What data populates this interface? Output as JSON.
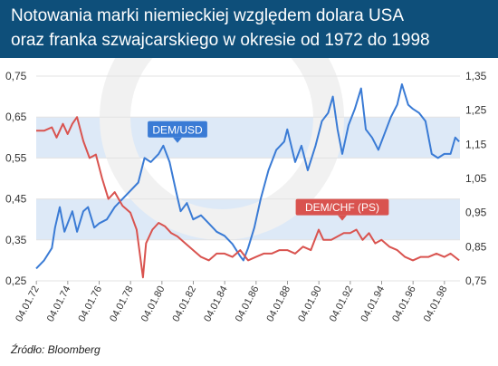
{
  "title_lines": [
    "Notowania marki niemieckiej względem dolara USA",
    "oraz franka szwajcarskiego w okresie od 1972 do 1998"
  ],
  "source": "Źródło: Bloomberg",
  "colors": {
    "header": "#0e4f7a",
    "usd": "#3a7bd5",
    "chf": "#d9534f",
    "band": "#dde9f7"
  },
  "chart_data": {
    "type": "line",
    "title": "Notowania marki niemieckiej względem dolara USA oraz franka szwajcarskiego w okresie od 1972 do 1998",
    "x_ticks": [
      "04.01.72",
      "04.01.74",
      "04.01.76",
      "04.01.78",
      "04.01.80",
      "04.01.82",
      "04.01.84",
      "04.01.86",
      "04.01.88",
      "04.01.90",
      "04.01.92",
      "04.01.94",
      "04.01.96",
      "04.01.98"
    ],
    "x_range": [
      "1972-01-04",
      "1998-12-31"
    ],
    "y_left": {
      "ticks": [
        "0,25",
        "0,35",
        "0,45",
        "0,55",
        "0,65",
        "0,75"
      ],
      "range": [
        0.25,
        0.75
      ]
    },
    "y_right": {
      "ticks": [
        "0,75",
        "0,85",
        "0,95",
        "1,05",
        "1,15",
        "1,25",
        "1,35"
      ],
      "range": [
        0.75,
        1.35
      ]
    },
    "bands_left_axis": [
      [
        0.35,
        0.45
      ],
      [
        0.55,
        0.65
      ]
    ],
    "series": [
      {
        "name": "DEM/USD",
        "axis": "left",
        "color": "#3a7bd5",
        "x": [
          1972.0,
          1972.5,
          1973.0,
          1973.2,
          1973.5,
          1973.8,
          1974.0,
          1974.3,
          1974.6,
          1975.0,
          1975.3,
          1975.7,
          1976.0,
          1976.5,
          1977.0,
          1977.5,
          1978.0,
          1978.5,
          1978.9,
          1979.3,
          1979.8,
          1980.1,
          1980.5,
          1980.9,
          1981.2,
          1981.6,
          1982.0,
          1982.5,
          1983.0,
          1983.5,
          1984.0,
          1984.5,
          1985.0,
          1985.2,
          1985.5,
          1985.9,
          1986.3,
          1986.8,
          1987.3,
          1987.8,
          1988.0,
          1988.5,
          1988.9,
          1989.3,
          1989.8,
          1990.2,
          1990.6,
          1990.9,
          1991.2,
          1991.5,
          1991.9,
          1992.3,
          1992.7,
          1993.0,
          1993.4,
          1993.8,
          1994.2,
          1994.6,
          1995.0,
          1995.3,
          1995.7,
          1996.0,
          1996.4,
          1996.8,
          1997.2,
          1997.6,
          1998.0,
          1998.4,
          1998.7,
          1998.95
        ],
        "y": [
          0.28,
          0.3,
          0.33,
          0.38,
          0.43,
          0.37,
          0.39,
          0.42,
          0.37,
          0.42,
          0.43,
          0.38,
          0.39,
          0.4,
          0.43,
          0.45,
          0.47,
          0.49,
          0.55,
          0.54,
          0.56,
          0.58,
          0.54,
          0.47,
          0.42,
          0.44,
          0.4,
          0.41,
          0.39,
          0.37,
          0.36,
          0.34,
          0.31,
          0.3,
          0.33,
          0.38,
          0.45,
          0.52,
          0.57,
          0.59,
          0.62,
          0.54,
          0.58,
          0.52,
          0.58,
          0.64,
          0.66,
          0.7,
          0.62,
          0.56,
          0.63,
          0.67,
          0.72,
          0.62,
          0.6,
          0.57,
          0.61,
          0.65,
          0.68,
          0.73,
          0.68,
          0.67,
          0.66,
          0.64,
          0.56,
          0.55,
          0.56,
          0.56,
          0.6,
          0.59
        ]
      },
      {
        "name": "DEM/CHF (PS)",
        "axis": "right",
        "color": "#d9534f",
        "x": [
          1972.0,
          1972.5,
          1973.0,
          1973.3,
          1973.7,
          1974.0,
          1974.3,
          1974.6,
          1975.0,
          1975.4,
          1975.8,
          1976.2,
          1976.6,
          1977.0,
          1977.5,
          1978.0,
          1978.4,
          1978.8,
          1979.0,
          1979.4,
          1979.8,
          1980.2,
          1980.6,
          1981.0,
          1981.5,
          1982.0,
          1982.5,
          1983.0,
          1983.5,
          1984.0,
          1984.5,
          1985.0,
          1985.5,
          1986.0,
          1986.5,
          1987.0,
          1987.5,
          1988.0,
          1988.5,
          1989.0,
          1989.5,
          1990.0,
          1990.3,
          1990.8,
          1991.2,
          1991.6,
          1992.0,
          1992.4,
          1992.8,
          1993.2,
          1993.6,
          1994.0,
          1994.5,
          1995.0,
          1995.5,
          1996.0,
          1996.5,
          1997.0,
          1997.5,
          1998.0,
          1998.4,
          1998.95
        ],
        "y": [
          1.19,
          1.19,
          1.2,
          1.17,
          1.21,
          1.18,
          1.21,
          1.23,
          1.16,
          1.11,
          1.12,
          1.05,
          0.99,
          1.01,
          0.97,
          0.95,
          0.9,
          0.76,
          0.86,
          0.9,
          0.92,
          0.91,
          0.89,
          0.88,
          0.86,
          0.84,
          0.82,
          0.81,
          0.83,
          0.83,
          0.82,
          0.84,
          0.81,
          0.82,
          0.83,
          0.83,
          0.84,
          0.84,
          0.83,
          0.85,
          0.84,
          0.9,
          0.87,
          0.87,
          0.88,
          0.89,
          0.89,
          0.9,
          0.87,
          0.89,
          0.86,
          0.87,
          0.85,
          0.84,
          0.82,
          0.81,
          0.82,
          0.82,
          0.83,
          0.82,
          0.83,
          0.81
        ]
      }
    ],
    "annotations": [
      {
        "text": "DEM/USD",
        "color": "#3a7bd5",
        "x": 1981.0,
        "y_left": 0.62
      },
      {
        "text": "DEM/CHF (PS)",
        "color": "#d9534f",
        "x": 1991.5,
        "y_left": 0.43
      }
    ]
  }
}
